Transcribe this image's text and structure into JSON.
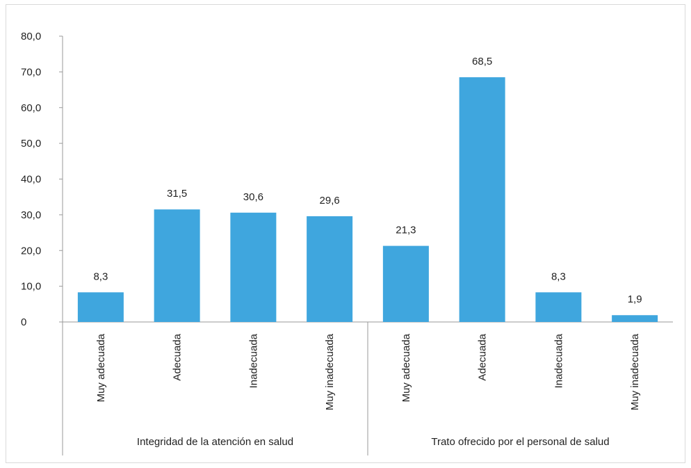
{
  "chart_data": {
    "type": "bar",
    "title": "",
    "xlabel": "",
    "ylabel": "",
    "ylim": [
      0,
      80
    ],
    "y_ticks": [
      "0",
      "10,0",
      "20,0",
      "30,0",
      "40,0",
      "50,0",
      "60,0",
      "70,0",
      "80,0"
    ],
    "y_tick_values": [
      0,
      10,
      20,
      30,
      40,
      50,
      60,
      70,
      80
    ],
    "grid": false,
    "bar_color": "#3fa6de",
    "groups": [
      {
        "name": "Integridad de la atención en salud",
        "categories": [
          "Muy adecuada",
          "Adecuada",
          "Inadecuada",
          "Muy inadecuada"
        ],
        "values": [
          8.3,
          31.5,
          30.6,
          29.6
        ],
        "value_labels": [
          "8,3",
          "31,5",
          "30,6",
          "29,6"
        ]
      },
      {
        "name": "Trato ofrecido por el personal de salud",
        "categories": [
          "Muy adecuada",
          "Adecuada",
          "Inadecuada",
          "Muy inadecuada"
        ],
        "values": [
          21.3,
          68.5,
          8.3,
          1.9
        ],
        "value_labels": [
          "21,3",
          "68,5",
          "8,3",
          "1,9"
        ]
      }
    ]
  }
}
